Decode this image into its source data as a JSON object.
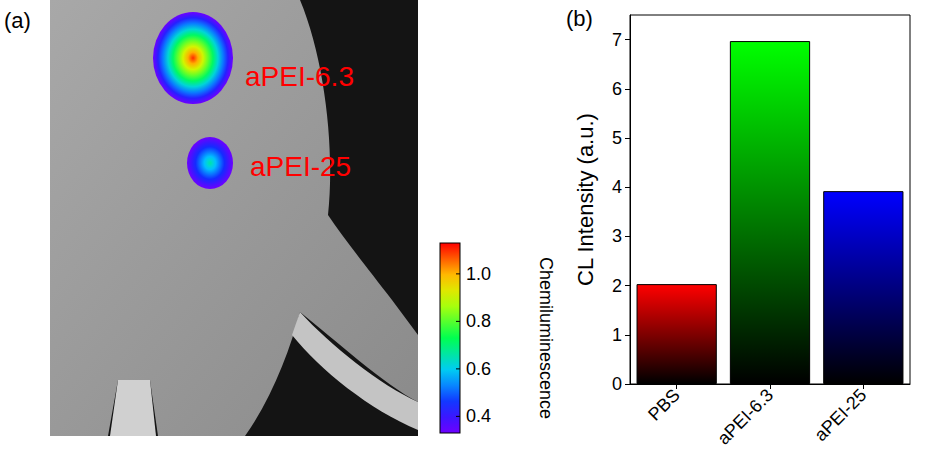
{
  "panel_a": {
    "letter": "(a)",
    "spots": [
      {
        "label": "aPEI-6.3",
        "peak": 1.1
      },
      {
        "label": "aPEI-25",
        "peak": 0.66
      }
    ],
    "colorbar": {
      "title": "Chemiluminescence",
      "range": [
        0.33,
        1.13
      ],
      "ticks": [
        0.4,
        0.6,
        0.8,
        {
          "value": 1.0,
          "label": "1.0"
        }
      ]
    }
  },
  "chart_data": {
    "letter": "(b)",
    "type": "bar",
    "categories": [
      "PBS",
      "aPEI-6.3",
      "aPEI-25"
    ],
    "values": [
      2.03,
      6.97,
      3.92
    ],
    "colors": [
      "#ff0000",
      "#00ff00",
      "#0000ff"
    ],
    "y_label": "CL Intensity (a.u.)",
    "ylim": [
      0,
      7.5
    ],
    "yticks": [
      0,
      1,
      2,
      3,
      4,
      5,
      6,
      7
    ],
    "grid": false
  }
}
